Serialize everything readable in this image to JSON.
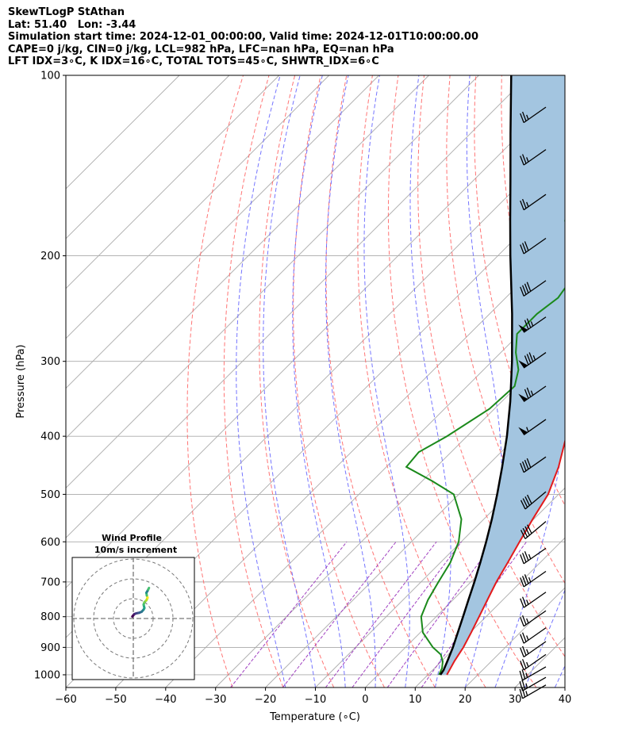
{
  "header": {
    "line1": "SkewTLogP StAthan",
    "line2": "Lat: 51.40   Lon: -3.44",
    "line3": "Simulation start time: 2024-12-01_00:00:00, Valid time: 2024-12-01T10:00:00.00",
    "line4": "CAPE=0 j/kg, CIN=0 j/kg, LCL=982 hPa, LFC=nan hPa, EQ=nan hPa",
    "line5": "LFT IDX=3∘C, K IDX=16∘C, TOTAL TOTS=45∘C, SHWTR_IDX=6∘C"
  },
  "chart_data": {
    "type": "line",
    "subtype": "skew-t log-p",
    "xlabel": "Temperature (∘C)",
    "ylabel": "Pressure (hPa)",
    "xlim": [
      -60,
      40
    ],
    "ylim_hpa": [
      1050,
      100
    ],
    "y_scale": "log",
    "x_ticks": [
      "−60",
      "−50",
      "−40",
      "−30",
      "−20",
      "−10",
      "0",
      "10",
      "20",
      "30",
      "40"
    ],
    "y_ticks": [
      "1000",
      "900",
      "800",
      "700",
      "600",
      "500",
      "400",
      "300",
      "200",
      "100"
    ],
    "grid": true,
    "colors": {
      "temperature": "#e31a1c",
      "dewpoint": "#1b8a1b",
      "parcel": "#000000",
      "shade": "#a3c5e0",
      "dry_adiabat": "#ff6666",
      "moist_adiabat": "#6666ff",
      "mixing_ratio": "#a040c0",
      "isotherm": "#aaaaaa"
    },
    "series": [
      {
        "role": "temperature",
        "points": [
          [
            1000,
            13.8
          ],
          [
            975,
            13.2
          ],
          [
            950,
            12.6
          ],
          [
            925,
            12.1
          ],
          [
            900,
            11.6
          ],
          [
            850,
            10.2
          ],
          [
            800,
            8.6
          ],
          [
            750,
            6.9
          ],
          [
            700,
            5.1
          ],
          [
            650,
            3.5
          ],
          [
            600,
            1.7
          ],
          [
            550,
            -0.2
          ],
          [
            500,
            -2.1
          ],
          [
            450,
            -5.5
          ],
          [
            400,
            -10.1
          ],
          [
            350,
            -15.4
          ],
          [
            320,
            -19.0
          ],
          [
            300,
            -21.6
          ],
          [
            280,
            -24.4
          ],
          [
            260,
            -27.8
          ],
          [
            245,
            -30.8
          ],
          [
            235,
            -33.0
          ],
          [
            220,
            -34.2
          ],
          [
            205,
            -36.8
          ],
          [
            190,
            -40.0
          ],
          [
            175,
            -43.5
          ],
          [
            160,
            -47.0
          ],
          [
            150,
            -49.5
          ],
          [
            140,
            -51.5
          ],
          [
            130,
            -54.0
          ],
          [
            120,
            -56.0
          ],
          [
            110,
            -58.5
          ],
          [
            100,
            -60.5
          ]
        ]
      },
      {
        "role": "dewpoint",
        "points": [
          [
            1000,
            12.2
          ],
          [
            975,
            11.5
          ],
          [
            950,
            10.3
          ],
          [
            925,
            8.5
          ],
          [
            900,
            5.5
          ],
          [
            850,
            0.5
          ],
          [
            800,
            -3.0
          ],
          [
            750,
            -5.0
          ],
          [
            700,
            -6.5
          ],
          [
            650,
            -8.0
          ],
          [
            600,
            -10.5
          ],
          [
            550,
            -14.5
          ],
          [
            500,
            -21.0
          ],
          [
            475,
            -28.0
          ],
          [
            450,
            -36.0
          ],
          [
            425,
            -36.5
          ],
          [
            400,
            -34.0
          ],
          [
            360,
            -31.0
          ],
          [
            330,
            -30.5
          ],
          [
            310,
            -33.0
          ],
          [
            290,
            -37.0
          ],
          [
            270,
            -40.5
          ],
          [
            250,
            -40.5
          ],
          [
            235,
            -39.5
          ],
          [
            220,
            -40.5
          ],
          [
            205,
            -43.0
          ],
          [
            190,
            -47.5
          ],
          [
            175,
            -53.5
          ],
          [
            160,
            -57.5
          ],
          [
            150,
            -58.0
          ],
          [
            140,
            -58.0
          ],
          [
            130,
            -59.5
          ],
          [
            120,
            -60.5
          ],
          [
            110,
            -62.0
          ],
          [
            100,
            -64.0
          ]
        ]
      },
      {
        "role": "parcel",
        "points": [
          [
            1000,
            12.5
          ],
          [
            982,
            12.2
          ],
          [
            950,
            11.2
          ],
          [
            900,
            9.5
          ],
          [
            850,
            7.5
          ],
          [
            800,
            5.4
          ],
          [
            750,
            3.1
          ],
          [
            700,
            0.7
          ],
          [
            650,
            -2.0
          ],
          [
            600,
            -5.0
          ],
          [
            550,
            -8.4
          ],
          [
            500,
            -12.3
          ],
          [
            450,
            -16.8
          ],
          [
            400,
            -22.0
          ],
          [
            350,
            -28.3
          ],
          [
            300,
            -36.0
          ],
          [
            250,
            -45.5
          ],
          [
            200,
            -57.5
          ],
          [
            175,
            -64.5
          ],
          [
            150,
            -72.5
          ],
          [
            125,
            -82.0
          ],
          [
            100,
            -93.5
          ]
        ]
      }
    ],
    "barbs": [
      {
        "p": 1040,
        "dir": 240,
        "spd": 25
      },
      {
        "p": 1010,
        "dir": 240,
        "spd": 25
      },
      {
        "p": 970,
        "dir": 240,
        "spd": 25
      },
      {
        "p": 925,
        "dir": 235,
        "spd": 25
      },
      {
        "p": 880,
        "dir": 235,
        "spd": 25
      },
      {
        "p": 835,
        "dir": 235,
        "spd": 25
      },
      {
        "p": 782,
        "dir": 235,
        "spd": 25
      },
      {
        "p": 728,
        "dir": 235,
        "spd": 25
      },
      {
        "p": 672,
        "dir": 235,
        "spd": 35
      },
      {
        "p": 615,
        "dir": 235,
        "spd": 35
      },
      {
        "p": 555,
        "dir": 230,
        "spd": 40
      },
      {
        "p": 495,
        "dir": 230,
        "spd": 40
      },
      {
        "p": 433,
        "dir": 235,
        "spd": 40
      },
      {
        "p": 375,
        "dir": 235,
        "spd": 55
      },
      {
        "p": 330,
        "dir": 235,
        "spd": 75
      },
      {
        "p": 290,
        "dir": 235,
        "spd": 85
      },
      {
        "p": 253,
        "dir": 235,
        "spd": 75
      },
      {
        "p": 220,
        "dir": 235,
        "spd": 40
      },
      {
        "p": 187,
        "dir": 235,
        "spd": 30
      },
      {
        "p": 158,
        "dir": 235,
        "spd": 25
      },
      {
        "p": 133,
        "dir": 235,
        "spd": 25
      },
      {
        "p": 113,
        "dir": 235,
        "spd": 25
      }
    ],
    "hodograph": {
      "title_line1": "Wind Profile",
      "title_line2": "10m/s increment",
      "rings_ms": [
        10,
        20,
        30
      ],
      "points_uv": [
        [
          -0.5,
          1.0
        ],
        [
          0.5,
          2.2
        ],
        [
          1.5,
          2.6
        ],
        [
          3.0,
          2.9
        ],
        [
          4.2,
          3.4
        ],
        [
          5.2,
          4.5
        ],
        [
          5.6,
          5.3
        ],
        [
          5.2,
          7.0
        ],
        [
          5.6,
          8.2
        ],
        [
          6.6,
          9.2
        ],
        [
          7.2,
          10.5
        ],
        [
          6.8,
          11.6
        ],
        [
          6.6,
          13.0
        ],
        [
          7.1,
          13.8
        ],
        [
          7.5,
          14.6
        ],
        [
          7.9,
          15.4
        ]
      ]
    }
  }
}
